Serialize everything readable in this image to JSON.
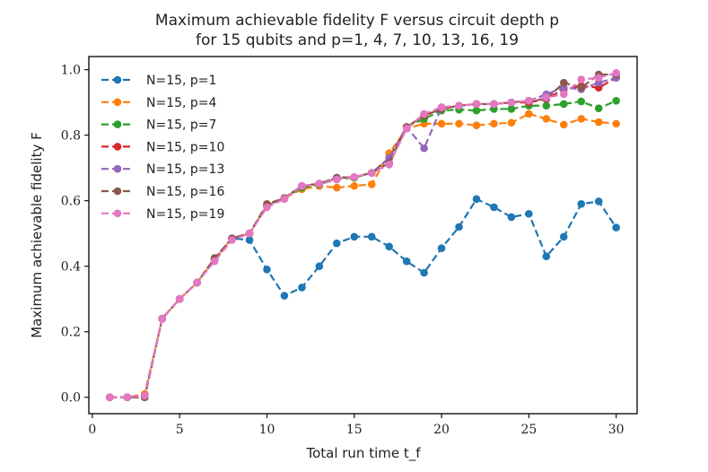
{
  "chart_data": {
    "type": "line",
    "title_line1": "Maximum achievable fidelity F versus circuit depth p",
    "title_line2": "for 15 qubits and p=1, 4, 7, 10, 13, 16, 19",
    "xlabel": "Total run time t_f",
    "ylabel": "Maximum achievable fidelity F",
    "xlim": [
      -0.2,
      31.2
    ],
    "ylim": [
      -0.05,
      1.04
    ],
    "xticks": [
      0,
      5,
      10,
      15,
      20,
      25,
      30
    ],
    "yticks": [
      0.0,
      0.2,
      0.4,
      0.6,
      0.8,
      1.0
    ],
    "xtick_labels": [
      "0",
      "5",
      "10",
      "15",
      "20",
      "25",
      "30"
    ],
    "ytick_labels": [
      "0.0",
      "0.2",
      "0.4",
      "0.6",
      "0.8",
      "1.0"
    ],
    "legend_position": "top-left",
    "x": [
      1,
      2,
      3,
      4,
      5,
      6,
      7,
      8,
      9,
      10,
      11,
      12,
      13,
      14,
      15,
      16,
      17,
      18,
      19,
      20,
      21,
      22,
      23,
      24,
      25,
      26,
      27,
      28,
      29,
      30
    ],
    "series": [
      {
        "name": "N=15, p=1",
        "color": "#1f77b4",
        "values": [
          0.0,
          0.0,
          0.0,
          0.24,
          0.3,
          0.35,
          0.42,
          0.485,
          0.48,
          0.39,
          0.31,
          0.335,
          0.4,
          0.47,
          0.49,
          0.49,
          0.46,
          0.415,
          0.38,
          0.455,
          0.52,
          0.605,
          0.58,
          0.55,
          0.56,
          0.43,
          0.49,
          0.59,
          0.598,
          0.518
        ]
      },
      {
        "name": "N=15, p=4",
        "color": "#ff7f0e",
        "values": [
          0.0,
          0.0,
          0.01,
          0.24,
          0.3,
          0.35,
          0.42,
          0.485,
          0.5,
          0.585,
          0.608,
          0.635,
          0.645,
          0.64,
          0.645,
          0.65,
          0.745,
          0.82,
          0.835,
          0.835,
          0.835,
          0.83,
          0.835,
          0.838,
          0.865,
          0.85,
          0.832,
          0.85,
          0.84,
          0.835
        ]
      },
      {
        "name": "N=15, p=7",
        "color": "#2ca02c",
        "values": [
          0.0,
          0.0,
          0.005,
          0.24,
          0.3,
          0.35,
          0.42,
          0.485,
          0.5,
          0.585,
          0.608,
          0.64,
          0.65,
          0.665,
          0.67,
          0.685,
          0.73,
          0.825,
          0.85,
          0.875,
          0.878,
          0.875,
          0.88,
          0.88,
          0.89,
          0.89,
          0.895,
          0.903,
          0.882,
          0.905
        ]
      },
      {
        "name": "N=15, p=10",
        "color": "#d62728",
        "values": [
          0.0,
          0.0,
          0.005,
          0.24,
          0.3,
          0.35,
          0.42,
          0.485,
          0.5,
          0.585,
          0.608,
          0.645,
          0.652,
          0.67,
          0.672,
          0.685,
          0.73,
          0.825,
          0.86,
          0.88,
          0.89,
          0.895,
          0.895,
          0.9,
          0.9,
          0.91,
          0.94,
          0.95,
          0.945,
          0.975
        ]
      },
      {
        "name": "N=15, p=13",
        "color": "#9467bd",
        "values": [
          0.0,
          0.0,
          0.0,
          0.24,
          0.3,
          0.35,
          0.42,
          0.485,
          0.5,
          0.585,
          0.608,
          0.645,
          0.652,
          0.67,
          0.672,
          0.685,
          0.73,
          0.825,
          0.76,
          0.885,
          0.89,
          0.895,
          0.895,
          0.9,
          0.905,
          0.925,
          0.945,
          0.94,
          0.96,
          0.975
        ]
      },
      {
        "name": "N=15, p=16",
        "color": "#8c564b",
        "values": [
          0.0,
          0.0,
          0.0,
          0.24,
          0.3,
          0.35,
          0.425,
          0.485,
          0.5,
          0.59,
          0.608,
          0.645,
          0.652,
          0.67,
          0.672,
          0.685,
          0.715,
          0.825,
          0.86,
          0.88,
          0.89,
          0.895,
          0.895,
          0.9,
          0.905,
          0.91,
          0.96,
          0.945,
          0.985,
          0.985
        ]
      },
      {
        "name": "N=15, p=19",
        "color": "#e377c2",
        "values": [
          0.0,
          0.0,
          0.005,
          0.24,
          0.3,
          0.35,
          0.415,
          0.48,
          0.5,
          0.58,
          0.605,
          0.645,
          0.652,
          0.665,
          0.672,
          0.685,
          0.71,
          0.82,
          0.865,
          0.885,
          0.89,
          0.895,
          0.895,
          0.9,
          0.905,
          0.915,
          0.925,
          0.97,
          0.975,
          0.99
        ]
      }
    ]
  }
}
